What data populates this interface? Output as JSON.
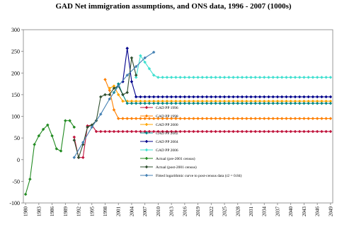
{
  "chart_data": {
    "type": "line",
    "title": "GAD Net immigration assumptions, and ONS data, 1996 - 2007 (1000s)",
    "xlim": [
      1979.5,
      2049.5
    ],
    "xticks": [
      1980,
      1983,
      1986,
      1989,
      1992,
      1995,
      1998,
      2001,
      2004,
      2007,
      2010,
      2013,
      2016,
      2019,
      2022,
      2025,
      2028,
      2031,
      2034,
      2037,
      2040,
      2043,
      2046,
      2049
    ],
    "ylim": [
      -100,
      300
    ],
    "yticks": [
      -100,
      -50,
      0,
      50,
      100,
      150,
      200,
      250,
      300
    ],
    "legend": "center",
    "series": [
      {
        "name": "GAD PP 1996",
        "color": "#c0143c",
        "x": [
          1991,
          1992,
          1993,
          1994,
          1995,
          1996,
          1997,
          1998,
          1999,
          2000,
          2001,
          2002,
          2003,
          2004,
          2005,
          2006,
          2007,
          2008,
          2009,
          2010,
          2011,
          2012,
          2013,
          2014,
          2015,
          2016,
          2017,
          2018,
          2019,
          2020,
          2021,
          2022,
          2023,
          2024,
          2025,
          2026,
          2027,
          2028,
          2029,
          2030,
          2031,
          2032,
          2033,
          2034,
          2035,
          2036,
          2037,
          2038,
          2039,
          2040,
          2041,
          2042,
          2043,
          2044,
          2045,
          2046,
          2047,
          2048,
          2049
        ],
        "values": [
          52,
          5,
          5,
          78,
          80,
          65,
          65,
          65,
          65,
          65,
          65,
          65,
          65,
          65,
          65,
          65,
          65,
          65,
          65,
          65,
          65,
          65,
          65,
          65,
          65,
          65,
          65,
          65,
          65,
          65,
          65,
          65,
          65,
          65,
          65,
          65,
          65,
          65,
          65,
          65,
          65,
          65,
          65,
          65,
          65,
          65,
          65,
          65,
          65,
          65,
          65,
          65,
          65,
          65,
          65,
          65,
          65,
          65,
          65
        ]
      },
      {
        "name": "GAD PP 1998",
        "color": "#ff8000",
        "x": [
          1998,
          1999,
          2000,
          2001,
          2002,
          2003,
          2004,
          2005,
          2006,
          2007,
          2008,
          2009,
          2010,
          2011,
          2012,
          2013,
          2014,
          2015,
          2016,
          2017,
          2018,
          2019,
          2020,
          2021,
          2022,
          2023,
          2024,
          2025,
          2026,
          2027,
          2028,
          2029,
          2030,
          2031,
          2032,
          2033,
          2034,
          2035,
          2036,
          2037,
          2038,
          2039,
          2040,
          2041,
          2042,
          2043,
          2044,
          2045,
          2046,
          2047,
          2048,
          2049
        ],
        "values": [
          185,
          160,
          115,
          95,
          95,
          95,
          95,
          95,
          95,
          95,
          95,
          95,
          95,
          95,
          95,
          95,
          95,
          95,
          95,
          95,
          95,
          95,
          95,
          95,
          95,
          95,
          95,
          95,
          95,
          95,
          95,
          95,
          95,
          95,
          95,
          95,
          95,
          95,
          95,
          95,
          95,
          95,
          95,
          95,
          95,
          95,
          95,
          95,
          95,
          95,
          95,
          95
        ]
      },
      {
        "name": "GAD PP 2000",
        "color": "#ffa500",
        "x": [
          1999,
          2000,
          2001,
          2002,
          2003,
          2004,
          2005,
          2006,
          2007,
          2008,
          2009,
          2010,
          2011,
          2012,
          2013,
          2014,
          2015,
          2016,
          2017,
          2018,
          2019,
          2020,
          2021,
          2022,
          2023,
          2024,
          2025,
          2026,
          2027,
          2028,
          2029,
          2030,
          2031,
          2032,
          2033,
          2034,
          2035,
          2036,
          2037,
          2038,
          2039,
          2040,
          2041,
          2042,
          2043,
          2044,
          2045,
          2046,
          2047,
          2048,
          2049
        ],
        "values": [
          165,
          170,
          150,
          135,
          135,
          135,
          135,
          135,
          135,
          135,
          135,
          135,
          135,
          135,
          135,
          135,
          135,
          135,
          135,
          135,
          135,
          135,
          135,
          135,
          135,
          135,
          135,
          135,
          135,
          135,
          135,
          135,
          135,
          135,
          135,
          135,
          135,
          135,
          135,
          135,
          135,
          135,
          135,
          135,
          135,
          135,
          135,
          135,
          135,
          135,
          135
        ]
      },
      {
        "name": "GAD PP 2002",
        "color": "#008b8b",
        "x": [
          2000,
          2001,
          2002,
          2003,
          2004,
          2005,
          2006,
          2007,
          2008,
          2009,
          2010,
          2011,
          2012,
          2013,
          2014,
          2015,
          2016,
          2017,
          2018,
          2019,
          2020,
          2021,
          2022,
          2023,
          2024,
          2025,
          2026,
          2027,
          2028,
          2029,
          2030,
          2031,
          2032,
          2033,
          2034,
          2035,
          2036,
          2037,
          2038,
          2039,
          2040,
          2041,
          2042,
          2043,
          2044,
          2045,
          2046,
          2047,
          2048,
          2049
        ],
        "values": [
          155,
          175,
          150,
          130,
          130,
          130,
          130,
          130,
          130,
          130,
          130,
          130,
          130,
          130,
          130,
          130,
          130,
          130,
          130,
          130,
          130,
          130,
          130,
          130,
          130,
          130,
          130,
          130,
          130,
          130,
          130,
          130,
          130,
          130,
          130,
          130,
          130,
          130,
          130,
          130,
          130,
          130,
          130,
          130,
          130,
          130,
          130,
          130,
          130,
          130
        ]
      },
      {
        "name": "GAD PP 2004",
        "color": "#00008b",
        "x": [
          2002,
          2003,
          2004,
          2005,
          2006,
          2007,
          2008,
          2009,
          2010,
          2011,
          2012,
          2013,
          2014,
          2015,
          2016,
          2017,
          2018,
          2019,
          2020,
          2021,
          2022,
          2023,
          2024,
          2025,
          2026,
          2027,
          2028,
          2029,
          2030,
          2031,
          2032,
          2033,
          2034,
          2035,
          2036,
          2037,
          2038,
          2039,
          2040,
          2041,
          2042,
          2043,
          2044,
          2045,
          2046,
          2047,
          2048,
          2049
        ],
        "values": [
          180,
          257,
          180,
          145,
          145,
          145,
          145,
          145,
          145,
          145,
          145,
          145,
          145,
          145,
          145,
          145,
          145,
          145,
          145,
          145,
          145,
          145,
          145,
          145,
          145,
          145,
          145,
          145,
          145,
          145,
          145,
          145,
          145,
          145,
          145,
          145,
          145,
          145,
          145,
          145,
          145,
          145,
          145,
          145,
          145,
          145,
          145,
          145
        ]
      },
      {
        "name": "GAD PP 2006",
        "color": "#40e0d0",
        "x": [
          2005,
          2006,
          2007,
          2008,
          2009,
          2010,
          2011,
          2012,
          2013,
          2014,
          2015,
          2016,
          2017,
          2018,
          2019,
          2020,
          2021,
          2022,
          2023,
          2024,
          2025,
          2026,
          2027,
          2028,
          2029,
          2030,
          2031,
          2032,
          2033,
          2034,
          2035,
          2036,
          2037,
          2038,
          2039,
          2040,
          2041,
          2042,
          2043,
          2044,
          2045,
          2046,
          2047,
          2048,
          2049
        ],
        "values": [
          190,
          240,
          225,
          210,
          195,
          190,
          190,
          190,
          190,
          190,
          190,
          190,
          190,
          190,
          190,
          190,
          190,
          190,
          190,
          190,
          190,
          190,
          190,
          190,
          190,
          190,
          190,
          190,
          190,
          190,
          190,
          190,
          190,
          190,
          190,
          190,
          190,
          190,
          190,
          190,
          190,
          190,
          190,
          190,
          190
        ]
      },
      {
        "name": "Actual (pre-2001 census)",
        "color": "#228b22",
        "x": [
          1980,
          1981,
          1982,
          1983,
          1984,
          1985,
          1986,
          1987,
          1988,
          1989,
          1990,
          1991
        ],
        "values": [
          -80,
          -45,
          35,
          55,
          70,
          80,
          55,
          25,
          20,
          90,
          90,
          75
        ]
      },
      {
        "name": "Actual (post-2001 census)",
        "color": "#2f4f2f",
        "x": [
          1991,
          1992,
          1993,
          1994,
          1995,
          1996,
          1997,
          1998,
          1999,
          2000,
          2001,
          2002,
          2003,
          2004,
          2005
        ],
        "values": [
          45,
          5,
          35,
          75,
          80,
          90,
          145,
          150,
          150,
          165,
          170,
          150,
          155,
          235,
          195
        ]
      },
      {
        "name": "Fitted logarithmic curve to post-census data (r2 = 0.84)",
        "color": "#4682b4",
        "x": [
          1991,
          1993,
          1995,
          1997,
          1999,
          2001,
          2003,
          2005,
          2007,
          2009
        ],
        "values": [
          5,
          40,
          75,
          105,
          140,
          170,
          195,
          215,
          235,
          248
        ]
      }
    ]
  }
}
